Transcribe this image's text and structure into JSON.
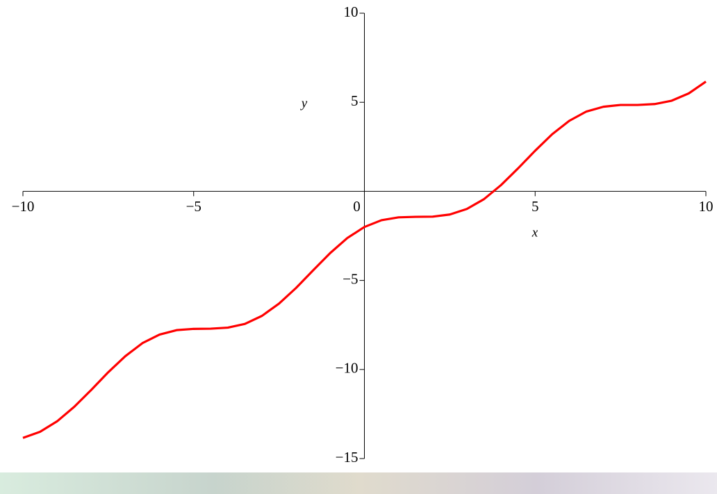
{
  "chart_data": {
    "type": "line",
    "x_label": "x",
    "y_label": "y",
    "x": [
      -10,
      -9.5,
      -9,
      -8.5,
      -8,
      -7.5,
      -7,
      -6.5,
      -6,
      -5.5,
      -5,
      -4.5,
      -4,
      -3.5,
      -3,
      -2.5,
      -2,
      -1.5,
      -1,
      -0.5,
      0,
      0.5,
      1,
      1.5,
      2,
      2.5,
      3,
      3.5,
      4,
      4.5,
      5,
      5.5,
      6,
      6.5,
      7,
      7.5,
      8,
      8.5,
      9,
      9.5,
      10
    ],
    "series": [
      {
        "color": "#ff0000",
        "values": [
          -13.84,
          -13.5,
          -12.91,
          -12.1,
          -11.15,
          -10.15,
          -9.25,
          -8.52,
          -8.04,
          -7.79,
          -7.72,
          -7.71,
          -7.65,
          -7.44,
          -6.99,
          -6.3,
          -5.42,
          -4.43,
          -3.46,
          -2.62,
          -2,
          -1.62,
          -1.46,
          -1.43,
          -1.42,
          -1.3,
          -0.99,
          -0.44,
          0.35,
          1.29,
          2.28,
          3.21,
          3.96,
          4.48,
          4.75,
          4.85,
          4.85,
          4.9,
          5.09,
          5.5,
          6.16
        ]
      }
    ],
    "xlim": [
      -10,
      10
    ],
    "ylim": [
      -15,
      10
    ],
    "xticks": [
      {
        "value": -10,
        "label": "−10"
      },
      {
        "value": -5,
        "label": "−5"
      },
      0,
      5,
      10
    ],
    "yticks": [
      {
        "value": -15,
        "label": "−15"
      },
      {
        "value": -10,
        "label": "−10"
      },
      {
        "value": -5,
        "label": "−5"
      },
      5,
      10
    ]
  }
}
